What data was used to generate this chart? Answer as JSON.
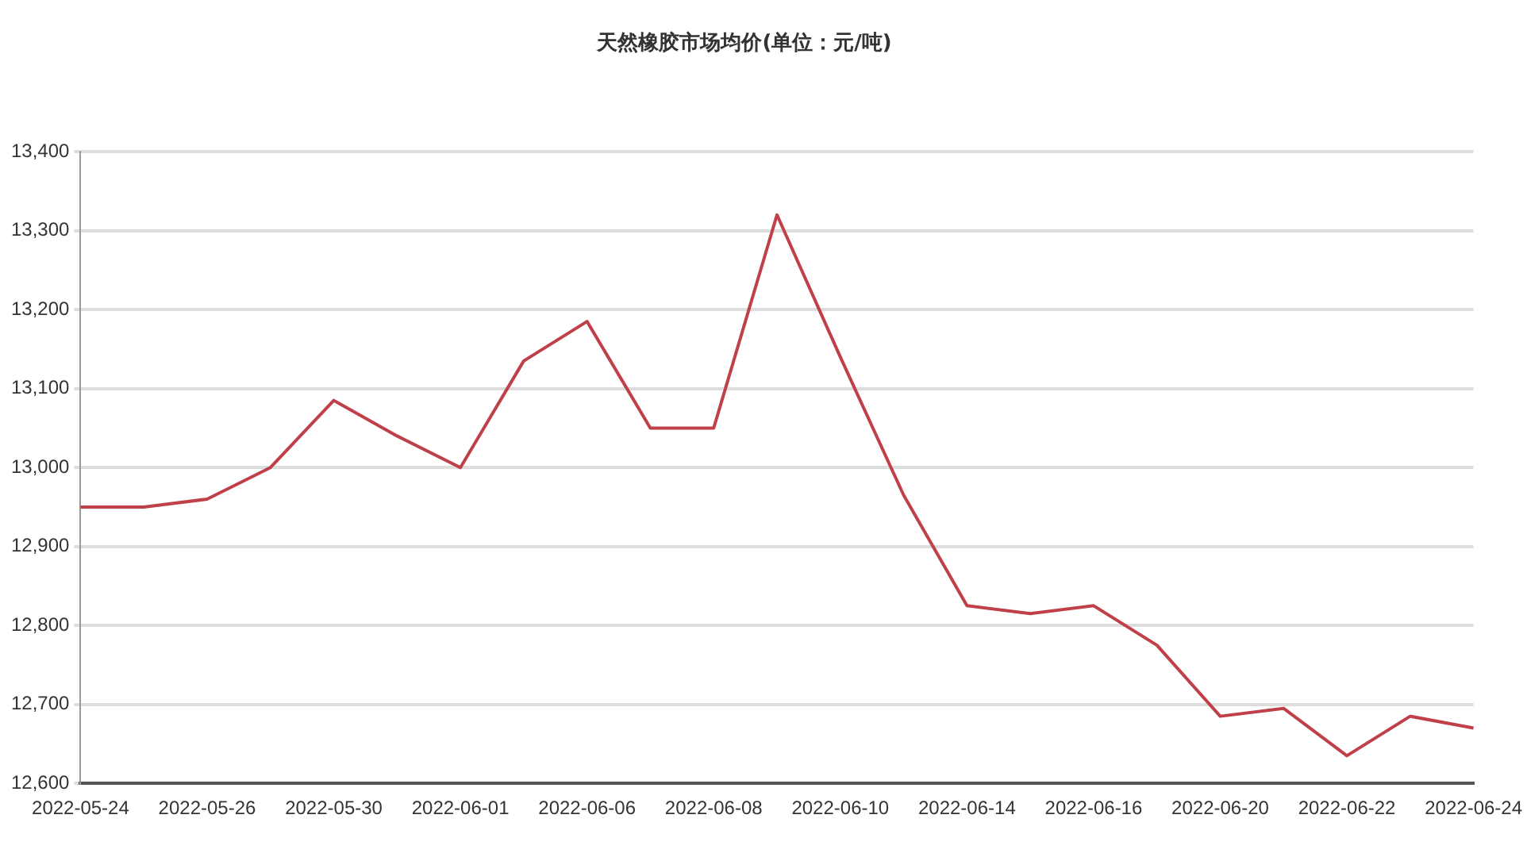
{
  "chart_data": {
    "type": "line",
    "title": "天然橡胶市场均价(单位：元/吨)",
    "categories": [
      "2022-05-24",
      null,
      "2022-05-26",
      null,
      "2022-05-30",
      null,
      "2022-06-01",
      null,
      "2022-06-06",
      null,
      "2022-06-08",
      null,
      "2022-06-10",
      null,
      "2022-06-14",
      null,
      "2022-06-16",
      null,
      "2022-06-20",
      null,
      "2022-06-22",
      null,
      "2022-06-24"
    ],
    "series": [
      {
        "color": "#c0404a",
        "values": [
          12950,
          12950,
          12960,
          13000,
          13085,
          13040,
          13000,
          13135,
          13185,
          13050,
          13050,
          13320,
          13140,
          12965,
          12825,
          12815,
          12825,
          12775,
          12685,
          12695,
          12635,
          12685,
          12670
        ]
      }
    ],
    "ylim": [
      12600,
      13400
    ],
    "yticks": [
      {
        "value": 12600,
        "label": "12,600"
      },
      {
        "value": 12700,
        "label": "12,700"
      },
      {
        "value": 12800,
        "label": "12,800"
      },
      {
        "value": 12900,
        "label": "12,900"
      },
      {
        "value": 13000,
        "label": "13,000"
      },
      {
        "value": 13100,
        "label": "13,100"
      },
      {
        "value": 13200,
        "label": "13,200"
      },
      {
        "value": 13300,
        "label": "13,300"
      },
      {
        "value": 13400,
        "label": "13,400"
      }
    ],
    "grid": "y",
    "marker": "none",
    "line_style": "solid",
    "legend": false
  }
}
